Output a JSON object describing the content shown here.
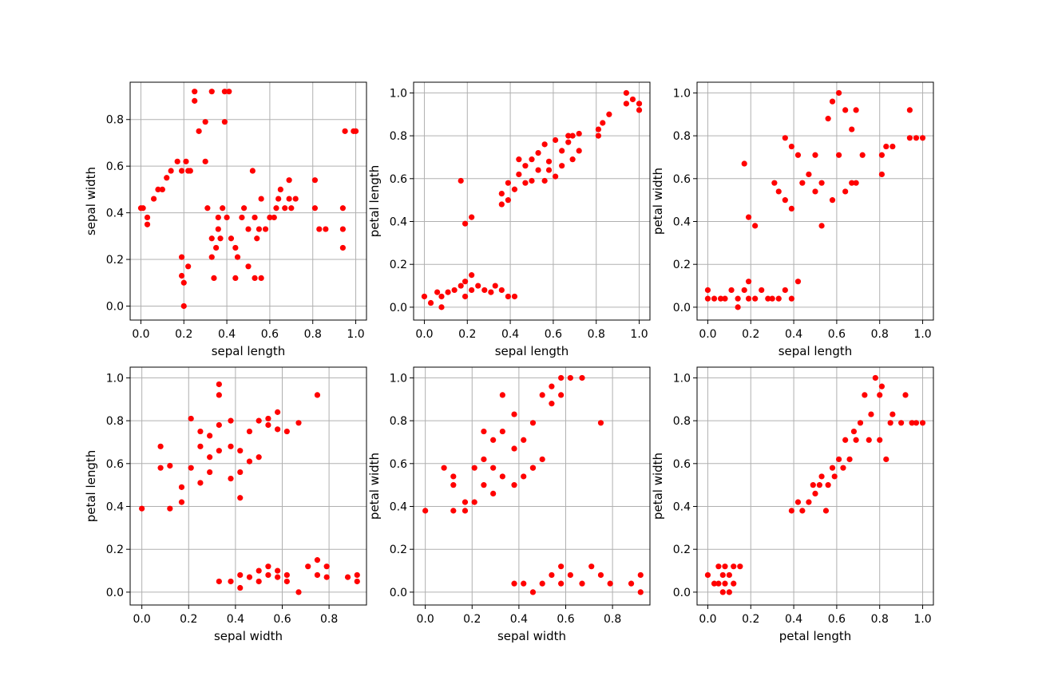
{
  "colors": {
    "point": "#ff0000",
    "grid": "#b0b0b0",
    "axes": "#000000",
    "background": "#ffffff"
  },
  "chart_data": [
    {
      "type": "scatter",
      "xlabel": "sepal length",
      "ylabel": "sepal width",
      "xlim": [
        -0.05,
        1.05
      ],
      "ylim": [
        -0.06,
        0.96
      ],
      "xticks": [
        "0.0",
        "0.2",
        "0.4",
        "0.6",
        "0.8",
        "1.0"
      ],
      "yticks": [
        "0.0",
        "0.2",
        "0.4",
        "0.6",
        "0.8"
      ],
      "xtick_values": [
        0,
        0.2,
        0.4,
        0.6,
        0.8,
        1.0
      ],
      "ytick_values": [
        0,
        0.2,
        0.4,
        0.6,
        0.8
      ],
      "grid": true,
      "x": [
        0.0,
        0.01,
        0.03,
        0.03,
        0.06,
        0.08,
        0.1,
        0.12,
        0.14,
        0.17,
        0.19,
        0.19,
        0.19,
        0.2,
        0.2,
        0.21,
        0.22,
        0.22,
        0.23,
        0.25,
        0.25,
        0.27,
        0.3,
        0.3,
        0.31,
        0.33,
        0.33,
        0.33,
        0.34,
        0.35,
        0.36,
        0.36,
        0.37,
        0.38,
        0.39,
        0.39,
        0.4,
        0.41,
        0.42,
        0.44,
        0.44,
        0.45,
        0.47,
        0.48,
        0.5,
        0.5,
        0.52,
        0.53,
        0.53,
        0.54,
        0.55,
        0.56,
        0.56,
        0.58,
        0.6,
        0.62,
        0.63,
        0.64,
        0.65,
        0.67,
        0.69,
        0.69,
        0.7,
        0.72,
        0.81,
        0.81,
        0.83,
        0.86,
        0.94,
        0.94,
        0.94,
        0.95,
        0.99,
        1.0
      ],
      "y": [
        0.42,
        0.42,
        0.38,
        0.35,
        0.46,
        0.5,
        0.5,
        0.55,
        0.58,
        0.62,
        0.58,
        0.13,
        0.21,
        0.1,
        0.0,
        0.62,
        0.17,
        0.58,
        0.58,
        0.88,
        0.92,
        0.75,
        0.62,
        0.79,
        0.42,
        0.92,
        0.29,
        0.21,
        0.12,
        0.25,
        0.33,
        0.38,
        0.29,
        0.42,
        0.92,
        0.79,
        0.38,
        0.92,
        0.29,
        0.12,
        0.25,
        0.21,
        0.38,
        0.42,
        0.33,
        0.17,
        0.58,
        0.12,
        0.38,
        0.29,
        0.33,
        0.46,
        0.12,
        0.33,
        0.38,
        0.38,
        0.42,
        0.46,
        0.5,
        0.42,
        0.46,
        0.54,
        0.42,
        0.46,
        0.42,
        0.54,
        0.33,
        0.33,
        0.42,
        0.33,
        0.25,
        0.75,
        0.75,
        0.75
      ]
    },
    {
      "type": "scatter",
      "xlabel": "sepal length",
      "ylabel": "petal length",
      "xlim": [
        -0.05,
        1.05
      ],
      "ylim": [
        -0.06,
        1.05
      ],
      "xticks": [
        "0.0",
        "0.2",
        "0.4",
        "0.6",
        "0.8",
        "1.0"
      ],
      "yticks": [
        "0.0",
        "0.2",
        "0.4",
        "0.6",
        "0.8",
        "1.0"
      ],
      "xtick_values": [
        0,
        0.2,
        0.4,
        0.6,
        0.8,
        1.0
      ],
      "ytick_values": [
        0,
        0.2,
        0.4,
        0.6,
        0.8,
        1.0
      ],
      "grid": true,
      "x": [
        0.0,
        0.03,
        0.06,
        0.08,
        0.08,
        0.11,
        0.14,
        0.17,
        0.19,
        0.19,
        0.22,
        0.22,
        0.25,
        0.28,
        0.31,
        0.33,
        0.36,
        0.39,
        0.42,
        0.17,
        0.19,
        0.22,
        0.36,
        0.36,
        0.39,
        0.39,
        0.42,
        0.44,
        0.44,
        0.47,
        0.47,
        0.5,
        0.5,
        0.53,
        0.53,
        0.56,
        0.56,
        0.58,
        0.58,
        0.61,
        0.61,
        0.64,
        0.64,
        0.67,
        0.67,
        0.69,
        0.69,
        0.72,
        0.72,
        0.81,
        0.81,
        0.83,
        0.86,
        0.94,
        0.94,
        0.97,
        1.0,
        1.0
      ],
      "y": [
        0.05,
        0.02,
        0.07,
        0.0,
        0.05,
        0.07,
        0.08,
        0.1,
        0.12,
        0.05,
        0.15,
        0.08,
        0.1,
        0.08,
        0.07,
        0.1,
        0.08,
        0.05,
        0.05,
        0.59,
        0.39,
        0.42,
        0.48,
        0.53,
        0.5,
        0.58,
        0.55,
        0.62,
        0.69,
        0.58,
        0.66,
        0.59,
        0.69,
        0.64,
        0.72,
        0.59,
        0.76,
        0.64,
        0.68,
        0.78,
        0.61,
        0.66,
        0.73,
        0.77,
        0.8,
        0.69,
        0.8,
        0.73,
        0.81,
        0.8,
        0.83,
        0.86,
        0.9,
        0.95,
        1.0,
        0.97,
        0.92,
        0.95
      ]
    },
    {
      "type": "scatter",
      "xlabel": "sepal length",
      "ylabel": "petal width",
      "xlim": [
        -0.05,
        1.05
      ],
      "ylim": [
        -0.06,
        1.05
      ],
      "xticks": [
        "0.0",
        "0.2",
        "0.4",
        "0.6",
        "0.8",
        "1.0"
      ],
      "yticks": [
        "0.0",
        "0.2",
        "0.4",
        "0.6",
        "0.8",
        "1.0"
      ],
      "xtick_values": [
        0,
        0.2,
        0.4,
        0.6,
        0.8,
        1.0
      ],
      "ytick_values": [
        0,
        0.2,
        0.4,
        0.6,
        0.8,
        1.0
      ],
      "grid": true,
      "x": [
        0.0,
        0.0,
        0.03,
        0.06,
        0.08,
        0.11,
        0.14,
        0.14,
        0.17,
        0.19,
        0.19,
        0.22,
        0.25,
        0.28,
        0.3,
        0.33,
        0.36,
        0.39,
        0.42,
        0.17,
        0.19,
        0.22,
        0.31,
        0.33,
        0.36,
        0.36,
        0.39,
        0.39,
        0.42,
        0.44,
        0.47,
        0.5,
        0.5,
        0.53,
        0.53,
        0.56,
        0.58,
        0.58,
        0.61,
        0.61,
        0.64,
        0.64,
        0.67,
        0.67,
        0.69,
        0.69,
        0.72,
        0.81,
        0.81,
        0.83,
        0.86,
        0.94,
        0.94,
        0.97,
        1.0
      ],
      "y": [
        0.08,
        0.04,
        0.04,
        0.04,
        0.04,
        0.08,
        0.0,
        0.04,
        0.08,
        0.12,
        0.04,
        0.04,
        0.08,
        0.04,
        0.04,
        0.04,
        0.08,
        0.04,
        0.12,
        0.67,
        0.42,
        0.38,
        0.58,
        0.54,
        0.5,
        0.79,
        0.46,
        0.75,
        0.71,
        0.58,
        0.62,
        0.54,
        0.71,
        0.38,
        0.58,
        0.88,
        0.5,
        0.96,
        0.71,
        1.0,
        0.54,
        0.92,
        0.58,
        0.83,
        0.92,
        0.58,
        0.71,
        0.62,
        0.71,
        0.75,
        0.75,
        0.79,
        0.92,
        0.79,
        0.79
      ]
    },
    {
      "type": "scatter",
      "xlabel": "sepal width",
      "ylabel": "petal length",
      "xlim": [
        -0.05,
        0.96
      ],
      "ylim": [
        -0.06,
        1.05
      ],
      "xticks": [
        "0.0",
        "0.2",
        "0.4",
        "0.6",
        "0.8"
      ],
      "yticks": [
        "0.0",
        "0.2",
        "0.4",
        "0.6",
        "0.8",
        "1.0"
      ],
      "xtick_values": [
        0,
        0.2,
        0.4,
        0.6,
        0.8
      ],
      "ytick_values": [
        0,
        0.2,
        0.4,
        0.6,
        0.8,
        1.0
      ],
      "grid": true,
      "x": [
        0.0,
        0.08,
        0.08,
        0.12,
        0.12,
        0.17,
        0.17,
        0.21,
        0.21,
        0.25,
        0.25,
        0.25,
        0.29,
        0.29,
        0.29,
        0.33,
        0.33,
        0.33,
        0.33,
        0.38,
        0.38,
        0.38,
        0.42,
        0.42,
        0.42,
        0.46,
        0.46,
        0.5,
        0.5,
        0.54,
        0.54,
        0.58,
        0.58,
        0.62,
        0.67,
        0.33,
        0.38,
        0.42,
        0.42,
        0.46,
        0.5,
        0.5,
        0.54,
        0.54,
        0.58,
        0.58,
        0.62,
        0.62,
        0.67,
        0.71,
        0.75,
        0.75,
        0.79,
        0.79,
        0.88,
        0.92,
        0.92,
        0.75
      ],
      "y": [
        0.39,
        0.68,
        0.58,
        0.39,
        0.59,
        0.42,
        0.49,
        0.58,
        0.81,
        0.51,
        0.68,
        0.75,
        0.63,
        0.73,
        0.56,
        0.66,
        0.78,
        0.97,
        0.92,
        0.53,
        0.68,
        0.8,
        0.56,
        0.66,
        0.44,
        0.75,
        0.61,
        0.8,
        0.63,
        0.78,
        0.81,
        0.76,
        0.84,
        0.75,
        0.79,
        0.05,
        0.05,
        0.08,
        0.02,
        0.07,
        0.1,
        0.05,
        0.08,
        0.12,
        0.07,
        0.1,
        0.05,
        0.08,
        0.0,
        0.12,
        0.15,
        0.08,
        0.12,
        0.07,
        0.07,
        0.05,
        0.08,
        0.92
      ]
    },
    {
      "type": "scatter",
      "xlabel": "sepal width",
      "ylabel": "petal width",
      "xlim": [
        -0.05,
        0.96
      ],
      "ylim": [
        -0.06,
        1.05
      ],
      "xticks": [
        "0.0",
        "0.2",
        "0.4",
        "0.6",
        "0.8"
      ],
      "yticks": [
        "0.0",
        "0.2",
        "0.4",
        "0.6",
        "0.8",
        "1.0"
      ],
      "xtick_values": [
        0,
        0.2,
        0.4,
        0.6,
        0.8
      ],
      "ytick_values": [
        0,
        0.2,
        0.4,
        0.6,
        0.8,
        1.0
      ],
      "grid": true,
      "x": [
        0.0,
        0.08,
        0.12,
        0.12,
        0.12,
        0.17,
        0.17,
        0.21,
        0.21,
        0.25,
        0.25,
        0.25,
        0.29,
        0.29,
        0.29,
        0.33,
        0.33,
        0.33,
        0.38,
        0.38,
        0.38,
        0.42,
        0.42,
        0.46,
        0.46,
        0.5,
        0.5,
        0.54,
        0.54,
        0.58,
        0.58,
        0.62,
        0.67,
        0.75,
        0.38,
        0.42,
        0.46,
        0.5,
        0.54,
        0.58,
        0.58,
        0.62,
        0.67,
        0.71,
        0.75,
        0.79,
        0.88,
        0.92,
        0.92,
        0.46
      ],
      "y": [
        0.38,
        0.58,
        0.38,
        0.5,
        0.54,
        0.38,
        0.42,
        0.42,
        0.58,
        0.5,
        0.62,
        0.75,
        0.58,
        0.71,
        0.46,
        0.75,
        0.92,
        0.54,
        0.67,
        0.83,
        0.5,
        0.54,
        0.71,
        0.79,
        0.58,
        0.92,
        0.62,
        0.88,
        0.96,
        1.0,
        0.92,
        1.0,
        1.0,
        0.79,
        0.04,
        0.04,
        0.0,
        0.04,
        0.08,
        0.12,
        0.04,
        0.08,
        0.04,
        0.12,
        0.08,
        0.04,
        0.04,
        0.0,
        0.08,
        0.58
      ]
    },
    {
      "type": "scatter",
      "xlabel": "petal length",
      "ylabel": "petal width",
      "xlim": [
        -0.05,
        1.05
      ],
      "ylim": [
        -0.06,
        1.05
      ],
      "xticks": [
        "0.0",
        "0.2",
        "0.4",
        "0.6",
        "0.8",
        "1.0"
      ],
      "yticks": [
        "0.0",
        "0.2",
        "0.4",
        "0.6",
        "0.8",
        "1.0"
      ],
      "xtick_values": [
        0,
        0.2,
        0.4,
        0.6,
        0.8,
        1.0
      ],
      "ytick_values": [
        0,
        0.2,
        0.4,
        0.6,
        0.8,
        1.0
      ],
      "grid": true,
      "x": [
        0.0,
        0.03,
        0.05,
        0.05,
        0.07,
        0.07,
        0.08,
        0.08,
        0.1,
        0.1,
        0.12,
        0.12,
        0.15,
        0.39,
        0.42,
        0.44,
        0.47,
        0.49,
        0.5,
        0.52,
        0.53,
        0.55,
        0.56,
        0.58,
        0.59,
        0.61,
        0.63,
        0.64,
        0.66,
        0.68,
        0.69,
        0.71,
        0.73,
        0.75,
        0.76,
        0.78,
        0.8,
        0.8,
        0.81,
        0.83,
        0.85,
        0.86,
        0.9,
        0.92,
        0.95,
        0.97,
        1.0
      ],
      "y": [
        0.08,
        0.04,
        0.04,
        0.12,
        0.0,
        0.08,
        0.04,
        0.12,
        0.0,
        0.08,
        0.04,
        0.12,
        0.12,
        0.38,
        0.42,
        0.38,
        0.42,
        0.5,
        0.46,
        0.5,
        0.54,
        0.38,
        0.5,
        0.58,
        0.54,
        0.62,
        0.58,
        0.71,
        0.62,
        0.75,
        0.71,
        0.79,
        0.92,
        0.71,
        0.83,
        1.0,
        0.71,
        0.92,
        0.96,
        0.62,
        0.79,
        0.83,
        0.79,
        0.92,
        0.79,
        0.79,
        0.79
      ]
    }
  ]
}
